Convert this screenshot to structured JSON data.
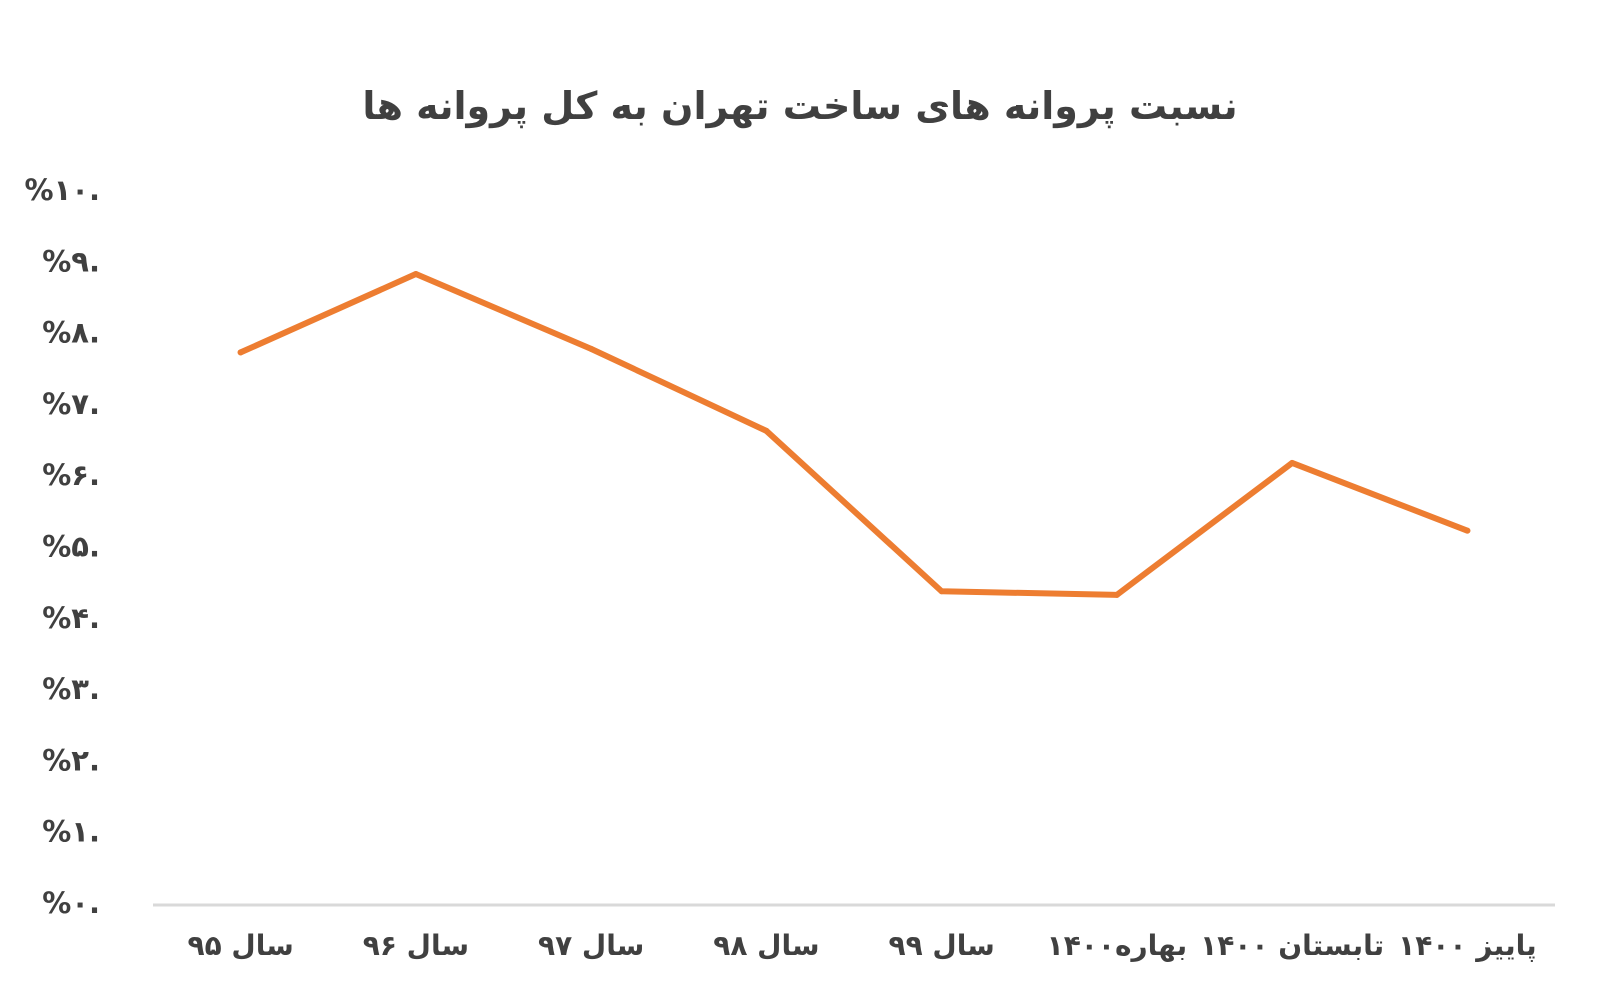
{
  "chart_data": {
    "type": "line",
    "title": "نسبت پروانه های ساخت تهران به کل پروانه ها",
    "categories": [
      "سال ۹۵",
      "سال ۹۶",
      "سال ۹۷",
      "سال ۹۸",
      "سال ۹۹",
      "بهاره۱۴۰۰",
      "تابستان ۱۴۰۰",
      "پاییز ۱۴۰۰"
    ],
    "values": [
      7.75,
      8.85,
      7.8,
      6.65,
      4.4,
      4.35,
      6.2,
      5.25
    ],
    "yticks": [
      "%۰.",
      "%۱.",
      "%۲.",
      "%۳.",
      "%۴.",
      "%۵.",
      "%۶.",
      "%۷.",
      "%۸.",
      "%۹.",
      "%۱۰."
    ],
    "ylim": [
      0,
      10
    ],
    "grid": false,
    "line_color": "#ED7D31",
    "axis_color": "#D9D9D9",
    "text_color": "#404040"
  }
}
